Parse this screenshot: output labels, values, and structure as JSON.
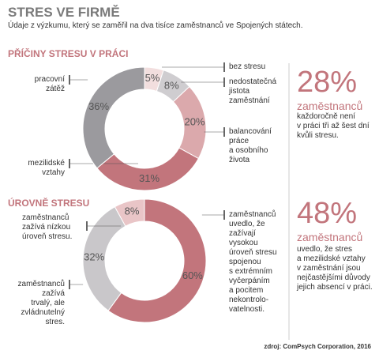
{
  "header": {
    "title": "STRES VE FIRMĚ",
    "subtitle": "Údaje z výzkumu, který se zaměřil na dva tisíce zaměstnanců ve Spojených státech."
  },
  "chart_data": [
    {
      "type": "pie",
      "donut": true,
      "title": "PŘÍČINY STRESU V PRÁCI",
      "categories": [
        "bez stresu",
        "nedostatečná\njistota\nzaměstnání",
        "balancování\npráce\na osobního\nživota",
        "mezilidské\nvztahy",
        "pracovní\nzátěž"
      ],
      "values": [
        5,
        8,
        20,
        31,
        36
      ],
      "value_labels": [
        "5%",
        "8%",
        "20%",
        "31%",
        "36%"
      ],
      "colors": [
        "#f2dede",
        "#cfcdd0",
        "#dba9ac",
        "#c2757c",
        "#9b9a9e"
      ]
    },
    {
      "type": "pie",
      "donut": true,
      "title": "ÚROVNĚ STRESU",
      "categories": [
        "zaměstnanců\nuvedlo, že\nzažívají\nvysokou\núroveň stresu\nspojenou\ns extrémním\nvyčerpáním\na pocitem\nnekontrolo-\nvatelnosti.",
        "zaměstnanců\nzažívá\ntrvalý, ale\nzvládnutelný\nstres.",
        "zaměstnanců\nzažívá nízkou\núroveň stresu."
      ],
      "values": [
        60,
        32,
        8
      ],
      "value_labels": [
        "60%",
        "32%",
        "8%"
      ],
      "colors": [
        "#c2757c",
        "#c9c7ca",
        "#e9c5c7"
      ]
    }
  ],
  "callouts": [
    {
      "value": "28%",
      "unit": "zaměstnanců",
      "text": "každoročně není\nv práci tři až šest dní\nkvůli stresu."
    },
    {
      "value": "48%",
      "unit": "zaměstnanců",
      "text": "uvedlo, že stres\na mezilidské vztahy\nv zaměstnání jsou\nnejčastějšími důvody\njejich absencí v práci."
    }
  ],
  "source": "zdroj: ComPsych Corporation, 2016"
}
